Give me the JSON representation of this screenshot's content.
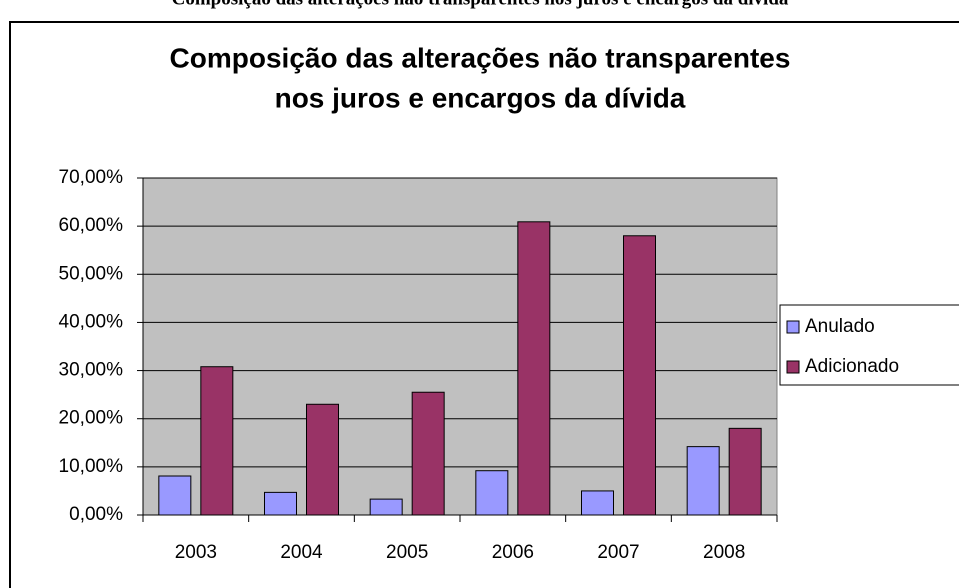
{
  "caption": "Composição das alterações não transparentes nos juros e encargos da dívida",
  "chart_data": {
    "type": "bar",
    "title": [
      "Composição das alterações não transparentes",
      "nos juros e encargos da dívida"
    ],
    "categories": [
      "2003",
      "2004",
      "2005",
      "2006",
      "2007",
      "2008"
    ],
    "series": [
      {
        "name": "Anulado",
        "color": "#9999ff",
        "values": [
          8.1,
          4.7,
          3.3,
          9.2,
          5.0,
          14.2
        ]
      },
      {
        "name": "Adicionado",
        "color": "#993366",
        "values": [
          30.8,
          23.0,
          25.5,
          60.9,
          58.0,
          18.0
        ]
      }
    ],
    "ylim": [
      0,
      70
    ],
    "yticks": [
      {
        "value": 0,
        "label": "0,00%"
      },
      {
        "value": 10,
        "label": "10,00%"
      },
      {
        "value": 20,
        "label": "20,00%"
      },
      {
        "value": 30,
        "label": "30,00%"
      },
      {
        "value": 40,
        "label": "40,00%"
      },
      {
        "value": 50,
        "label": "50,00%"
      },
      {
        "value": 60,
        "label": "60,00%"
      },
      {
        "value": 70,
        "label": "70,00%"
      }
    ],
    "grid": true,
    "legend": "right",
    "plot_background": "#c0c0c0"
  }
}
